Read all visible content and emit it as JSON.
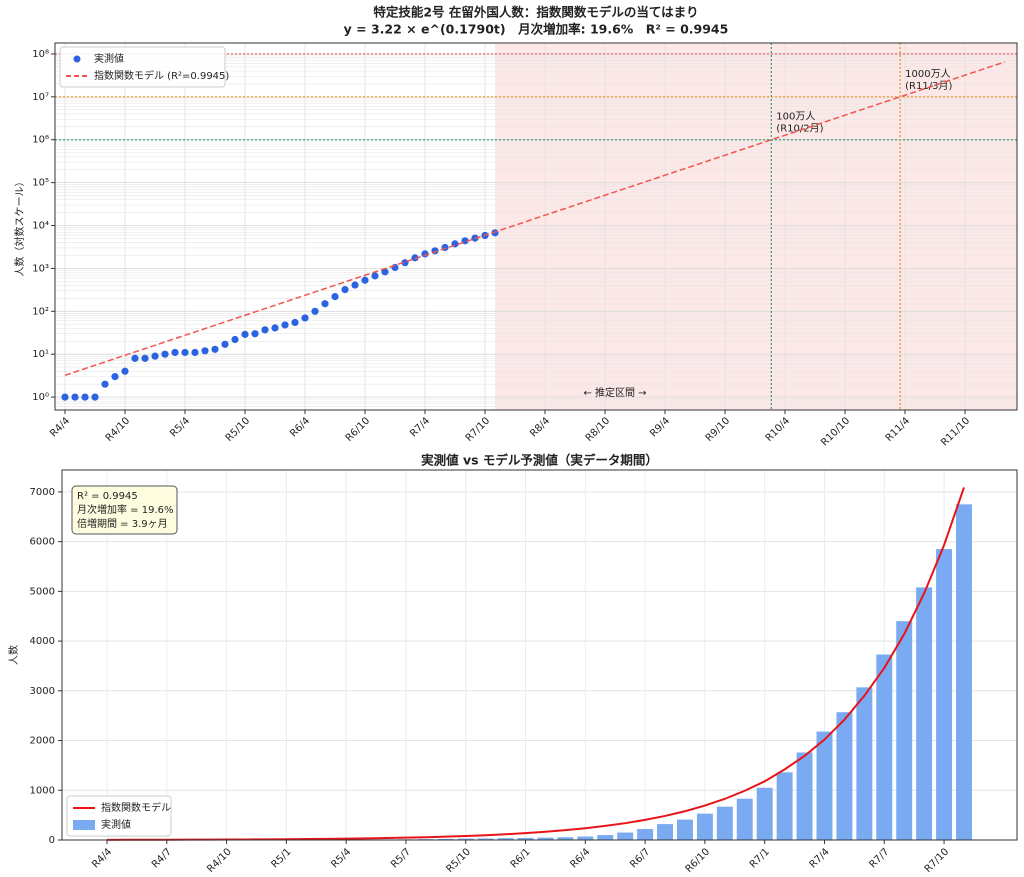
{
  "chart_data": [
    {
      "type": "scatter",
      "y_scale": "log",
      "grid": true,
      "minor_grid": true,
      "legend": "upper left",
      "title": "特定技能2号 在留外国人数：指数関数モデルの当てはまり",
      "subtitle": "y = 3.22 × e^(0.1790t)　月次増加率: 19.6%　R² = 0.9945",
      "ylabel": "人数（対数スケール）",
      "region_label": "← 推定区間 →",
      "region_color": "#fde8e8",
      "categories": [
        "R4/4",
        null,
        null,
        null,
        null,
        null,
        "R4/10",
        null,
        null,
        null,
        null,
        null,
        "R5/4",
        null,
        null,
        null,
        null,
        null,
        "R5/10",
        null,
        null,
        null,
        null,
        null,
        "R6/4",
        null,
        null,
        null,
        null,
        null,
        "R6/10",
        null,
        null,
        null,
        null,
        null,
        "R7/4",
        null,
        null,
        null,
        null,
        null,
        "R7/10",
        null,
        null,
        null,
        null,
        null,
        "R8/4",
        null,
        null,
        null,
        null,
        null,
        "R8/10",
        null,
        null,
        null,
        null,
        null,
        "R9/4",
        null,
        null,
        null,
        null,
        null,
        "R9/10",
        null,
        null,
        null,
        null,
        null,
        "R10/4",
        null,
        null,
        null,
        null,
        null,
        "R10/10",
        null,
        null,
        null,
        null,
        null,
        "R11/4",
        null,
        null,
        null,
        null,
        null,
        "R11/10",
        null,
        null,
        null,
        null
      ],
      "ylim": [
        0.5,
        180000000
      ],
      "yticks": [
        {
          "value": 1,
          "label": "10⁰"
        },
        {
          "value": 10,
          "label": "10¹"
        },
        {
          "value": 100,
          "label": "10²"
        },
        {
          "value": 1000,
          "label": "10³"
        },
        {
          "value": 10000,
          "label": "10⁴"
        },
        {
          "value": 100000,
          "label": "10⁵"
        },
        {
          "value": 1000000,
          "label": "10⁶"
        },
        {
          "value": 10000000,
          "label": "10⁷"
        },
        {
          "value": 100000000,
          "label": "10⁸"
        }
      ],
      "reference_lines": [
        {
          "value": 1000000,
          "color": "#3a9e78",
          "label": [
            "100万人",
            "(R10/2月)"
          ]
        },
        {
          "value": 10000000,
          "color": "#e8962e",
          "label": [
            "1000万人",
            "(R11/3月)"
          ]
        },
        {
          "value": 100000000,
          "color": "#e87070"
        }
      ],
      "series": [
        {
          "name": "実測値",
          "style": "marker",
          "color": "#2b63e0",
          "values": [
            1,
            1,
            1,
            1,
            2,
            3,
            4,
            8,
            8,
            9,
            10,
            11,
            11,
            11,
            12,
            13,
            17,
            22,
            29,
            30,
            37,
            41,
            48,
            55,
            70,
            100,
            150,
            220,
            320,
            410,
            530,
            670,
            830,
            1050,
            1360,
            1760,
            2180,
            2570,
            3070,
            3730,
            4400,
            5080,
            5850,
            6750,
            null,
            null,
            null,
            null,
            null,
            null,
            null,
            null,
            null,
            null,
            null,
            null,
            null,
            null,
            null,
            null,
            null,
            null,
            null,
            null,
            null,
            null,
            null,
            null,
            null,
            null,
            null,
            null,
            null,
            null,
            null,
            null,
            null,
            null,
            null,
            null,
            null,
            null,
            null,
            null,
            null,
            null,
            null,
            null,
            null,
            null,
            null,
            null,
            null,
            null,
            null
          ]
        },
        {
          "name": "指数関数モデル (R²=0.9945)",
          "style": "dashed",
          "color": "#f2554c",
          "values": [
            3.22,
            3.85,
            4.61,
            5.51,
            6.59,
            7.88,
            9.43,
            11.3,
            13.5,
            16.1,
            19.3,
            23.1,
            27.6,
            33.0,
            39.5,
            47.2,
            56.5,
            67.5,
            80.8,
            96.6,
            116,
            138,
            165,
            198,
            236,
            283,
            338,
            404,
            484,
            578,
            692,
            827,
            990,
            1180,
            1420,
            1690,
            2020,
            2420,
            2900,
            3460,
            4140,
            4960,
            5930,
            7090,
            8480,
            10100,
            12100,
            14500,
            17400,
            20800,
            24800,
            29700,
            35500,
            42500,
            50800,
            60800,
            72700,
            86900,
            104000,
            124000,
            149000,
            178000,
            213000,
            254000,
            304000,
            364000,
            435000,
            521000,
            623000,
            745000,
            891000,
            1070000,
            1270000,
            1520000,
            1820000,
            2180000,
            2610000,
            3120000,
            3730000,
            4460000,
            5330000,
            6380000,
            7630000,
            9120000,
            10900000,
            13000000,
            15600000,
            18700000,
            22300000,
            26700000,
            31900000,
            38200000,
            45700000,
            54600000,
            65300000
          ]
        }
      ]
    },
    {
      "type": "bar",
      "grid": true,
      "legend": "lower left",
      "title": "実測値 vs モデル予測値（実データ期間）",
      "ylabel": "人数",
      "text_box": [
        "R² = 0.9945",
        "月次増加率 = 19.6%",
        "倍増期間 = 3.9ヶ月"
      ],
      "text_box_corner": "upper left",
      "categories": [
        "R4/4",
        null,
        null,
        "R4/7",
        null,
        null,
        "R4/10",
        null,
        null,
        "R5/1",
        null,
        null,
        "R5/4",
        null,
        null,
        "R5/7",
        null,
        null,
        "R5/10",
        null,
        null,
        "R6/1",
        null,
        null,
        "R6/4",
        null,
        null,
        "R6/7",
        null,
        null,
        "R6/10",
        null,
        null,
        "R7/1",
        null,
        null,
        "R7/4",
        null,
        null,
        "R7/7",
        null,
        null,
        "R7/10",
        null
      ],
      "ylim": [
        0,
        7440
      ],
      "yticks": [
        0,
        1000,
        2000,
        3000,
        4000,
        5000,
        6000,
        7000
      ],
      "series": [
        {
          "name": "指数関数モデル",
          "kind": "line",
          "color": "#e8141a",
          "values": [
            3.22,
            3.85,
            4.61,
            5.51,
            6.59,
            7.88,
            9.43,
            11.3,
            13.5,
            16.1,
            19.3,
            23.1,
            27.6,
            33.0,
            39.5,
            47.2,
            56.5,
            67.5,
            80.8,
            96.6,
            116,
            138,
            165,
            198,
            236,
            283,
            338,
            404,
            484,
            578,
            692,
            827,
            990,
            1180,
            1420,
            1690,
            2020,
            2420,
            2900,
            3460,
            4140,
            4960,
            5930,
            7090
          ]
        },
        {
          "name": "実測値",
          "kind": "bar",
          "color": "#7aabf2",
          "values": [
            1,
            1,
            1,
            1,
            2,
            3,
            4,
            8,
            8,
            9,
            10,
            11,
            11,
            11,
            12,
            13,
            17,
            22,
            29,
            30,
            37,
            41,
            48,
            55,
            70,
            100,
            150,
            220,
            320,
            410,
            530,
            670,
            830,
            1050,
            1360,
            1760,
            2180,
            2570,
            3070,
            3730,
            4400,
            5080,
            5850,
            6750
          ]
        }
      ]
    }
  ]
}
